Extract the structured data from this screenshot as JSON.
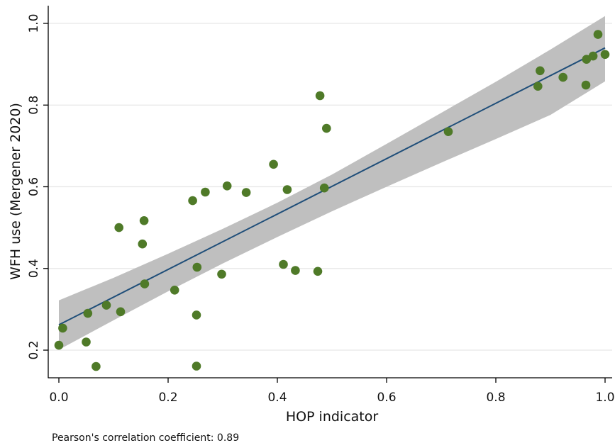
{
  "chart_data": {
    "type": "scatter",
    "xlabel": "HOP indicator",
    "ylabel": "WFH use (Mergener 2020)",
    "xlim": [
      -0.02,
      1.0
    ],
    "ylim": [
      0.13,
      1.05
    ],
    "x_ticks": [
      0.0,
      0.2,
      0.4,
      0.6,
      0.8,
      1.0
    ],
    "x_tick_labels": [
      "0.0",
      "0.2",
      "0.4",
      "0.6",
      "0.8",
      "1.0"
    ],
    "y_ticks": [
      0.2,
      0.4,
      0.6,
      0.8,
      1.0
    ],
    "y_tick_labels": [
      "0.2",
      "0.4",
      "0.6",
      "0.8",
      "1.0"
    ],
    "grid": "horizontal",
    "colors": {
      "points": "#4f7a28",
      "fit_line": "#1f4e79",
      "confidence_band": "#bfbfbf",
      "grid": "#e6e6e6",
      "axis": "#000000"
    },
    "points": [
      {
        "x": 0.0,
        "y": 0.212
      },
      {
        "x": 0.007,
        "y": 0.254
      },
      {
        "x": 0.05,
        "y": 0.22
      },
      {
        "x": 0.053,
        "y": 0.29
      },
      {
        "x": 0.068,
        "y": 0.16
      },
      {
        "x": 0.087,
        "y": 0.31
      },
      {
        "x": 0.11,
        "y": 0.5
      },
      {
        "x": 0.113,
        "y": 0.294
      },
      {
        "x": 0.153,
        "y": 0.46
      },
      {
        "x": 0.156,
        "y": 0.517
      },
      {
        "x": 0.157,
        "y": 0.362
      },
      {
        "x": 0.212,
        "y": 0.347
      },
      {
        "x": 0.245,
        "y": 0.566
      },
      {
        "x": 0.252,
        "y": 0.286
      },
      {
        "x": 0.253,
        "y": 0.403
      },
      {
        "x": 0.252,
        "y": 0.161
      },
      {
        "x": 0.268,
        "y": 0.587
      },
      {
        "x": 0.298,
        "y": 0.386
      },
      {
        "x": 0.308,
        "y": 0.602
      },
      {
        "x": 0.343,
        "y": 0.586
      },
      {
        "x": 0.393,
        "y": 0.655
      },
      {
        "x": 0.411,
        "y": 0.41
      },
      {
        "x": 0.418,
        "y": 0.593
      },
      {
        "x": 0.433,
        "y": 0.395
      },
      {
        "x": 0.474,
        "y": 0.393
      },
      {
        "x": 0.478,
        "y": 0.823
      },
      {
        "x": 0.486,
        "y": 0.597
      },
      {
        "x": 0.49,
        "y": 0.743
      },
      {
        "x": 0.713,
        "y": 0.735
      },
      {
        "x": 0.877,
        "y": 0.846
      },
      {
        "x": 0.881,
        "y": 0.884
      },
      {
        "x": 0.923,
        "y": 0.868
      },
      {
        "x": 0.965,
        "y": 0.849
      },
      {
        "x": 0.966,
        "y": 0.912
      },
      {
        "x": 0.978,
        "y": 0.92
      },
      {
        "x": 0.987,
        "y": 0.973
      },
      {
        "x": 1.0,
        "y": 0.924
      }
    ],
    "fit_line": {
      "x": [
        0.0,
        1.0
      ],
      "y": [
        0.262,
        0.94
      ]
    },
    "confidence_band": {
      "x": [
        0.0,
        0.1,
        0.2,
        0.3,
        0.4,
        0.5,
        0.6,
        0.7,
        0.8,
        0.9,
        1.0
      ],
      "upper": [
        0.322,
        0.377,
        0.436,
        0.497,
        0.561,
        0.63,
        0.705,
        0.781,
        0.857,
        0.936,
        1.018
      ],
      "lower": [
        0.201,
        0.273,
        0.344,
        0.412,
        0.477,
        0.54,
        0.6,
        0.659,
        0.717,
        0.776,
        0.858
      ]
    },
    "annotation": "Pearson's correlation coefficient: 0.89"
  }
}
